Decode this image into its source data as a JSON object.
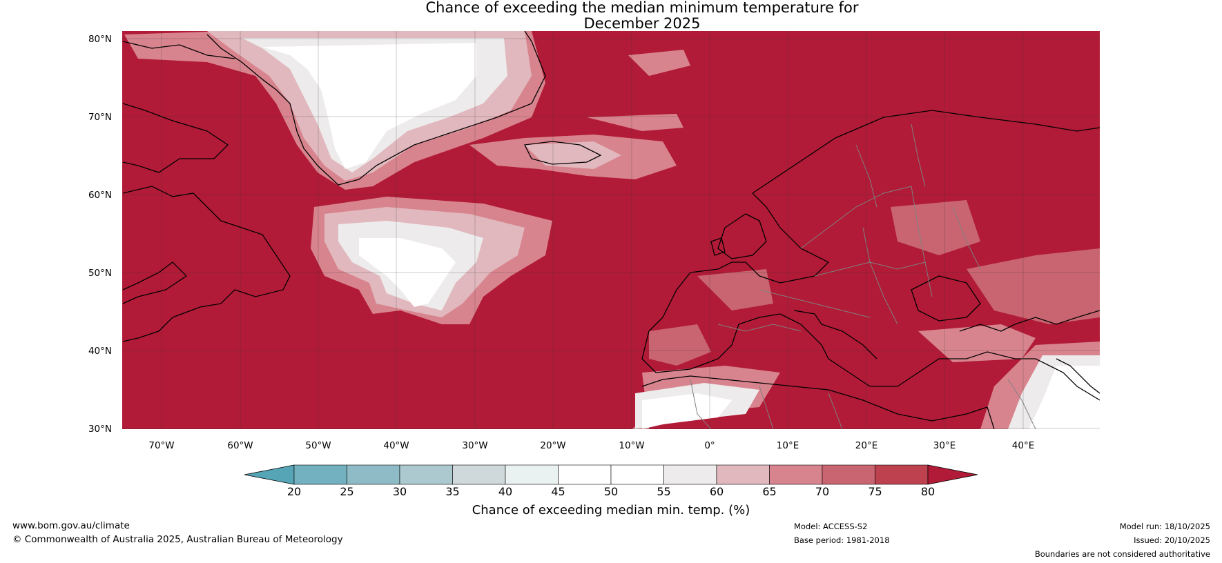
{
  "title": {
    "line1": "Chance of exceeding the median minimum temperature for",
    "line2": "December 2025"
  },
  "map": {
    "lat_labels": [
      "80°N",
      "70°N",
      "60°N",
      "50°N",
      "40°N",
      "30°N"
    ],
    "lon_labels": [
      "70°W",
      "60°W",
      "50°W",
      "40°W",
      "30°W",
      "20°W",
      "10°W",
      "0°",
      "10°E",
      "20°E",
      "30°E",
      "40°E"
    ],
    "colors": {
      "land_sea_high": "#b11b37",
      "ocean_bg": "#b11b37",
      "coastline": "#000000",
      "border": "#808080"
    }
  },
  "colorbar": {
    "ticks": [
      "20",
      "25",
      "30",
      "35",
      "40",
      "45",
      "50",
      "55",
      "60",
      "65",
      "70",
      "75",
      "80"
    ],
    "label": "Chance of exceeding median min. temp. (%)",
    "bins": [
      "#55a5b6",
      "#73b1c0",
      "#8ebbc6",
      "#acc9cf",
      "#cfd8da",
      "#eaf1f1",
      "#ffffff",
      "#ffffff",
      "#edebeb",
      "#e1b8bd",
      "#d8848e",
      "#c86570",
      "#bd414f",
      "#b11b37"
    ]
  },
  "footer": {
    "website": "www.bom.gov.au/climate",
    "copyright": "© Commonwealth of Australia 2025, Australian Bureau of Meteorology",
    "model": "Model: ACCESS-S2",
    "base_period": "Base period: 1981-2018",
    "model_run": "Model run: 18/10/2025",
    "issued": "Issued: 20/10/2025",
    "disclaimer": "Boundaries are not considered authoritative"
  }
}
